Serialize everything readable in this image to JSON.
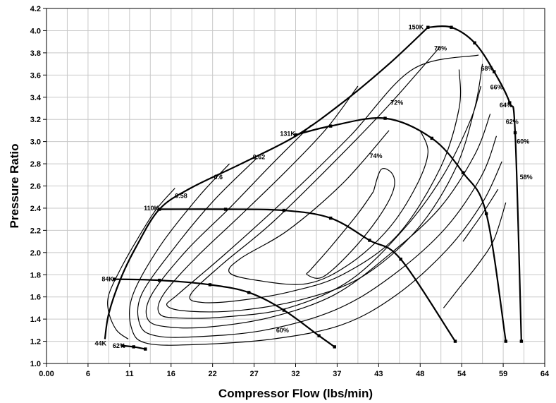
{
  "chart_data": {
    "type": "line",
    "xlabel": "Compressor Flow (lbs/min)",
    "ylabel": "Pressure Ratio",
    "xlim": [
      0,
      64
    ],
    "ylim": [
      1.0,
      4.2
    ],
    "x_tick_labels": [
      "0.00",
      "6",
      "11",
      "16",
      "22",
      "27",
      "32",
      "37",
      "43",
      "48",
      "54",
      "59",
      "64"
    ],
    "y_tick_labels": [
      "1.0",
      "1.2",
      "1.4",
      "1.6",
      "1.8",
      "2.0",
      "2.2",
      "2.4",
      "2.6",
      "2.8",
      "3.0",
      "3.2",
      "3.4",
      "3.6",
      "3.8",
      "4.0",
      "4.2"
    ],
    "grid": true,
    "surge_line": [
      [
        7.5,
        1.22
      ],
      [
        8.0,
        1.45
      ],
      [
        9.5,
        1.76
      ],
      [
        11.5,
        2.05
      ],
      [
        14.5,
        2.39
      ],
      [
        18.5,
        2.58
      ],
      [
        25.0,
        2.8
      ],
      [
        32.0,
        3.05
      ],
      [
        38.0,
        3.35
      ],
      [
        44.0,
        3.7
      ],
      [
        49.0,
        4.03
      ]
    ],
    "speed_lines": [
      {
        "name": "44K",
        "points": [
          [
            9.8,
            1.16
          ],
          [
            11.2,
            1.15
          ],
          [
            12.7,
            1.13
          ]
        ]
      },
      {
        "name": "84K",
        "points": [
          [
            8.7,
            1.76
          ],
          [
            14.5,
            1.75
          ],
          [
            21.0,
            1.71
          ],
          [
            26.0,
            1.64
          ],
          [
            30.5,
            1.48
          ],
          [
            35.0,
            1.25
          ],
          [
            37.0,
            1.15
          ]
        ]
      },
      {
        "name": "110K",
        "points": [
          [
            14.5,
            2.39
          ],
          [
            23.0,
            2.39
          ],
          [
            30.5,
            2.38
          ],
          [
            36.5,
            2.31
          ],
          [
            41.5,
            2.11
          ],
          [
            45.5,
            1.94
          ],
          [
            52.5,
            1.2
          ]
        ]
      },
      {
        "name": "131K",
        "points": [
          [
            32.0,
            3.06
          ],
          [
            36.5,
            3.14
          ],
          [
            43.5,
            3.21
          ],
          [
            49.5,
            3.03
          ],
          [
            53.5,
            2.72
          ],
          [
            56.5,
            2.35
          ],
          [
            59.0,
            1.2
          ]
        ]
      },
      {
        "name": "150K",
        "points": [
          [
            49.0,
            4.03
          ],
          [
            52.0,
            4.03
          ],
          [
            55.0,
            3.89
          ],
          [
            57.5,
            3.63
          ],
          [
            59.5,
            3.35
          ],
          [
            60.2,
            3.08
          ],
          [
            61.0,
            1.2
          ]
        ]
      }
    ],
    "efficiency_islands": [
      {
        "name": "74%",
        "points": [
          [
            42.0,
            2.55
          ],
          [
            40.0,
            2.35
          ],
          [
            36.5,
            2.05
          ],
          [
            34.0,
            1.85
          ],
          [
            33.5,
            1.8
          ],
          [
            35.5,
            1.78
          ],
          [
            39.0,
            2.0
          ],
          [
            42.5,
            2.3
          ],
          [
            44.5,
            2.55
          ],
          [
            44.5,
            2.7
          ],
          [
            43.0,
            2.75
          ],
          [
            42.0,
            2.55
          ]
        ]
      },
      {
        "name": "72%",
        "points": [
          [
            44.0,
            3.1
          ],
          [
            38.0,
            2.62
          ],
          [
            31.0,
            2.2
          ],
          [
            25.0,
            1.95
          ],
          [
            23.5,
            1.82
          ],
          [
            27.0,
            1.75
          ],
          [
            33.5,
            1.72
          ],
          [
            39.0,
            1.9
          ],
          [
            44.0,
            2.22
          ],
          [
            47.5,
            2.6
          ],
          [
            49.0,
            2.9
          ],
          [
            48.0,
            3.1
          ]
        ]
      },
      {
        "name": "70%",
        "points": [
          [
            50.5,
            3.85
          ],
          [
            44.0,
            3.33
          ],
          [
            37.0,
            2.82
          ],
          [
            29.0,
            2.27
          ],
          [
            22.5,
            1.89
          ],
          [
            18.5,
            1.62
          ],
          [
            20.0,
            1.55
          ],
          [
            25.0,
            1.57
          ],
          [
            31.5,
            1.65
          ],
          [
            38.0,
            1.8
          ],
          [
            45.0,
            2.15
          ],
          [
            50.5,
            2.75
          ],
          [
            53.0,
            3.3
          ],
          [
            53.0,
            3.65
          ]
        ]
      },
      {
        "name": "68%",
        "points": [
          [
            55.5,
            3.78
          ],
          [
            47.0,
            3.65
          ],
          [
            39.0,
            3.05
          ],
          [
            31.0,
            2.5
          ],
          [
            23.0,
            1.99
          ],
          [
            17.0,
            1.63
          ],
          [
            15.5,
            1.52
          ],
          [
            18.5,
            1.47
          ],
          [
            25.0,
            1.48
          ],
          [
            33.0,
            1.58
          ],
          [
            40.5,
            1.78
          ],
          [
            47.5,
            2.2
          ],
          [
            52.5,
            2.75
          ],
          [
            55.0,
            3.3
          ],
          [
            56.0,
            3.7
          ]
        ]
      },
      {
        "name": "66%",
        "points": [
          [
            55.8,
            3.5
          ],
          [
            54.5,
            3.2
          ],
          [
            51.0,
            2.7
          ],
          [
            46.0,
            2.22
          ],
          [
            39.0,
            1.75
          ],
          [
            31.0,
            1.5
          ],
          [
            23.0,
            1.42
          ],
          [
            17.0,
            1.41
          ],
          [
            14.5,
            1.45
          ],
          [
            15.0,
            1.62
          ],
          [
            19.0,
            1.94
          ],
          [
            25.0,
            2.34
          ],
          [
            31.0,
            2.75
          ],
          [
            36.0,
            3.12
          ],
          [
            40.0,
            3.5
          ]
        ]
      },
      {
        "name": "64%",
        "points": [
          [
            57.0,
            3.25
          ],
          [
            55.0,
            2.88
          ],
          [
            50.5,
            2.4
          ],
          [
            44.0,
            1.98
          ],
          [
            37.0,
            1.62
          ],
          [
            29.0,
            1.42
          ],
          [
            21.0,
            1.33
          ],
          [
            15.5,
            1.33
          ],
          [
            13.0,
            1.4
          ],
          [
            13.5,
            1.62
          ],
          [
            18.0,
            2.02
          ],
          [
            23.5,
            2.4
          ],
          [
            29.0,
            2.8
          ],
          [
            34.0,
            3.15
          ]
        ]
      },
      {
        "name": "62%",
        "points": [
          [
            57.8,
            3.05
          ],
          [
            55.8,
            2.68
          ],
          [
            51.0,
            2.2
          ],
          [
            44.0,
            1.77
          ],
          [
            37.0,
            1.48
          ],
          [
            28.0,
            1.3
          ],
          [
            19.0,
            1.24
          ],
          [
            14.0,
            1.25
          ],
          [
            12.0,
            1.35
          ],
          [
            12.2,
            1.62
          ],
          [
            16.5,
            2.05
          ],
          [
            21.5,
            2.47
          ],
          [
            27.0,
            2.85
          ]
        ]
      },
      {
        "name": "60%",
        "points": [
          [
            58.5,
            2.82
          ],
          [
            56.0,
            2.45
          ],
          [
            51.5,
            2.03
          ],
          [
            45.0,
            1.62
          ],
          [
            38.0,
            1.35
          ],
          [
            29.0,
            1.22
          ],
          [
            19.0,
            1.17
          ],
          [
            13.0,
            1.18
          ],
          [
            11.0,
            1.3
          ],
          [
            11.0,
            1.6
          ],
          [
            14.5,
            2.05
          ],
          [
            19.5,
            2.5
          ],
          [
            23.5,
            2.8
          ]
        ]
      },
      {
        "name": "58%",
        "points": [
          [
            58.0,
            2.57
          ],
          [
            56.0,
            2.35
          ],
          [
            54.5,
            2.2
          ],
          [
            53.5,
            2.1
          ]
        ]
      },
      {
        "name": "58%-b",
        "points": [
          [
            59.0,
            2.45
          ],
          [
            57.5,
            2.12
          ],
          [
            55.5,
            1.9
          ],
          [
            53.0,
            1.68
          ],
          [
            51.0,
            1.5
          ]
        ]
      },
      {
        "name": "",
        "points": [
          [
            10.5,
            1.22
          ],
          [
            9.0,
            1.3
          ],
          [
            8.0,
            1.46
          ],
          [
            8.0,
            1.62
          ],
          [
            9.5,
            1.85
          ],
          [
            11.5,
            2.1
          ],
          [
            14.0,
            2.38
          ],
          [
            16.5,
            2.58
          ]
        ]
      }
    ],
    "labels": [
      {
        "text": "150K",
        "x": 46.5,
        "y": 4.03
      },
      {
        "text": "131K",
        "x": 30.0,
        "y": 3.07
      },
      {
        "text": "110K",
        "x": 12.5,
        "y": 2.4
      },
      {
        "text": "84K",
        "x": 7.1,
        "y": 1.76
      },
      {
        "text": "44K",
        "x": 6.2,
        "y": 1.18
      },
      {
        "text": "62%",
        "x": 8.5,
        "y": 1.16
      },
      {
        "text": "60%",
        "x": 29.5,
        "y": 1.3
      },
      {
        "text": "70%",
        "x": 49.8,
        "y": 3.84
      },
      {
        "text": "68%",
        "x": 55.8,
        "y": 3.66
      },
      {
        "text": "66%",
        "x": 57.0,
        "y": 3.49
      },
      {
        "text": "64%",
        "x": 58.2,
        "y": 3.33
      },
      {
        "text": "62%",
        "x": 59.0,
        "y": 3.18
      },
      {
        "text": "60%",
        "x": 60.4,
        "y": 3.0
      },
      {
        "text": "58%",
        "x": 60.8,
        "y": 2.68
      },
      {
        "text": "72%",
        "x": 44.2,
        "y": 3.35
      },
      {
        "text": "74%",
        "x": 41.5,
        "y": 2.87
      },
      {
        "text": "0.62",
        "x": 26.5,
        "y": 2.86
      },
      {
        "text": "0.6",
        "x": 21.5,
        "y": 2.68
      },
      {
        "text": "0.58",
        "x": 16.5,
        "y": 2.51
      }
    ]
  }
}
